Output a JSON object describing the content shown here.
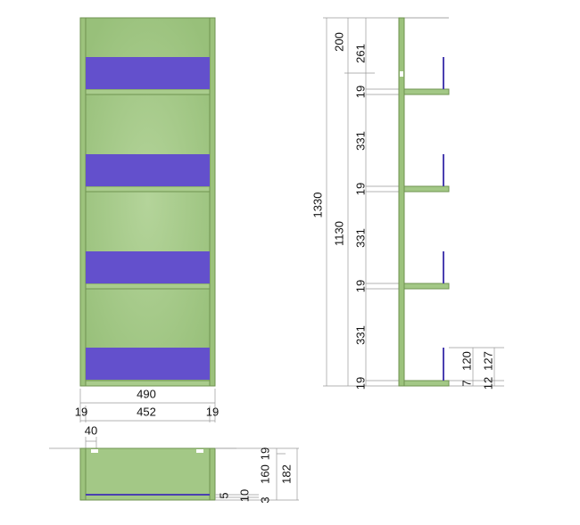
{
  "front_view": {
    "width": "490",
    "parts": [
      "19",
      "452",
      "19"
    ]
  },
  "top_view": {
    "offset": "40",
    "depths": [
      "5",
      "10",
      "3",
      "160",
      "19",
      "182"
    ]
  },
  "side_view": {
    "total": "1330",
    "inner": "1130",
    "top": "200",
    "segments": [
      "261",
      "19",
      "331",
      "19",
      "331",
      "19",
      "331",
      "19"
    ],
    "details": [
      "7",
      "120",
      "12",
      "127"
    ]
  }
}
